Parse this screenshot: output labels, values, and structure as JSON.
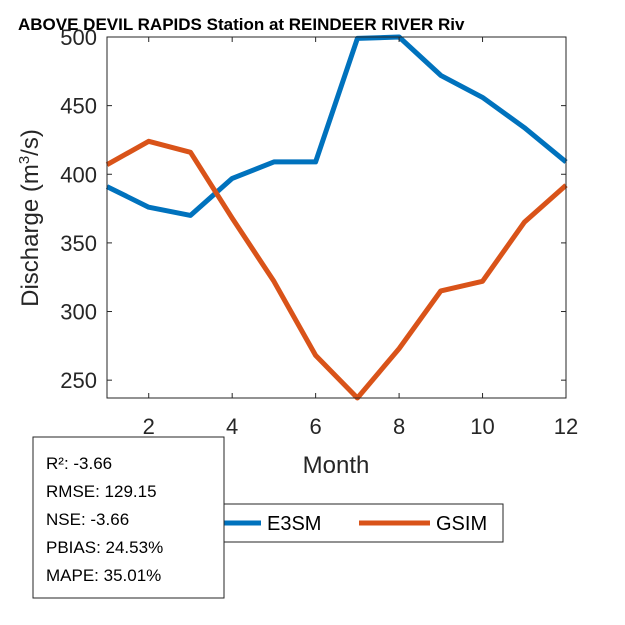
{
  "chart_data": {
    "type": "line",
    "title": "ABOVE DEVIL RAPIDS  Station at  REINDEER RIVER  Riv",
    "xlabel": "Month",
    "ylabel_main": "Discharge (m",
    "ylabel_sup": "3",
    "ylabel_tail": "/s)",
    "xlim": [
      1,
      12
    ],
    "ylim": [
      237,
      500
    ],
    "xticks": [
      2,
      4,
      6,
      8,
      10,
      12
    ],
    "yticks": [
      250,
      300,
      350,
      400,
      450,
      500
    ],
    "x": [
      1,
      2,
      3,
      4,
      5,
      6,
      7,
      8,
      9,
      10,
      11,
      12
    ],
    "series": [
      {
        "name": "E3SM",
        "color": "#0072BD",
        "values": [
          391,
          376,
          370,
          397,
          409,
          409,
          499,
          500,
          472,
          456,
          434,
          409
        ]
      },
      {
        "name": "GSIM",
        "color": "#D95319",
        "values": [
          407,
          424,
          416,
          368,
          322,
          268,
          237,
          273,
          315,
          322,
          365,
          392
        ]
      }
    ]
  },
  "stats": {
    "r2": "R²: -3.66",
    "rmse": "RMSE: 129.15",
    "nse": "NSE: -3.66",
    "pbias": "PBIAS: 24.53%",
    "mape": "MAPE: 35.01%"
  }
}
